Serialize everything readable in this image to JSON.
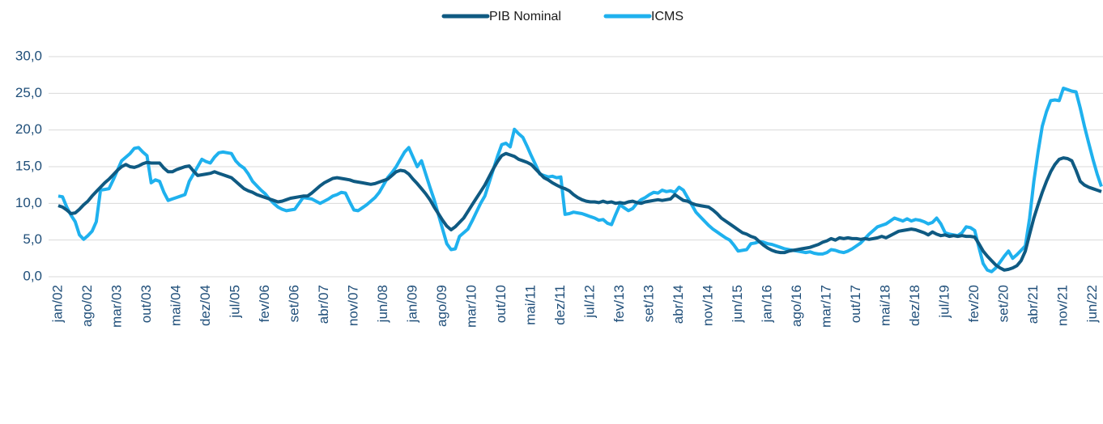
{
  "chart_data": {
    "type": "line",
    "categories": [
      "jan/02",
      null,
      null,
      null,
      null,
      null,
      null,
      "ago/02",
      null,
      null,
      null,
      null,
      null,
      null,
      "mar/03",
      null,
      null,
      null,
      null,
      null,
      null,
      "out/03",
      null,
      null,
      null,
      null,
      null,
      null,
      "mai/04",
      null,
      null,
      null,
      null,
      null,
      null,
      "dez/04",
      null,
      null,
      null,
      null,
      null,
      null,
      "jul/05",
      null,
      null,
      null,
      null,
      null,
      null,
      "fev/06",
      null,
      null,
      null,
      null,
      null,
      null,
      "set/06",
      null,
      null,
      null,
      null,
      null,
      null,
      "abr/07",
      null,
      null,
      null,
      null,
      null,
      null,
      "nov/07",
      null,
      null,
      null,
      null,
      null,
      null,
      "jun/08",
      null,
      null,
      null,
      null,
      null,
      null,
      "jan/09",
      null,
      null,
      null,
      null,
      null,
      null,
      "ago/09",
      null,
      null,
      null,
      null,
      null,
      null,
      "mar/10",
      null,
      null,
      null,
      null,
      null,
      null,
      "out/10",
      null,
      null,
      null,
      null,
      null,
      null,
      "mai/11",
      null,
      null,
      null,
      null,
      null,
      null,
      "dez/11",
      null,
      null,
      null,
      null,
      null,
      null,
      "jul/12",
      null,
      null,
      null,
      null,
      null,
      null,
      "fev/13",
      null,
      null,
      null,
      null,
      null,
      null,
      "set/13",
      null,
      null,
      null,
      null,
      null,
      null,
      "abr/14",
      null,
      null,
      null,
      null,
      null,
      null,
      "nov/14",
      null,
      null,
      null,
      null,
      null,
      null,
      "jun/15",
      null,
      null,
      null,
      null,
      null,
      null,
      "jan/16",
      null,
      null,
      null,
      null,
      null,
      null,
      "ago/16",
      null,
      null,
      null,
      null,
      null,
      null,
      "mar/17",
      null,
      null,
      null,
      null,
      null,
      null,
      "out/17",
      null,
      null,
      null,
      null,
      null,
      null,
      "mai/18",
      null,
      null,
      null,
      null,
      null,
      null,
      "dez/18",
      null,
      null,
      null,
      null,
      null,
      null,
      "jul/19",
      null,
      null,
      null,
      null,
      null,
      null,
      "fev/20",
      null,
      null,
      null,
      null,
      null,
      null,
      "set/20",
      null,
      null,
      null,
      null,
      null,
      null,
      "abr/21",
      null,
      null,
      null,
      null,
      null,
      null,
      "nov/21",
      null,
      null,
      null,
      null,
      null,
      null,
      "jun/22",
      null,
      null
    ],
    "series": [
      {
        "name": "PIB Nominal",
        "color": "#0f5a82",
        "values": [
          9.7,
          9.5,
          9.1,
          8.6,
          8.7,
          9.2,
          9.8,
          10.3,
          11.0,
          11.6,
          12.2,
          12.8,
          13.3,
          13.9,
          14.5,
          15.0,
          15.3,
          15.0,
          14.9,
          15.1,
          15.4,
          15.6,
          15.5,
          15.5,
          15.5,
          14.8,
          14.3,
          14.3,
          14.6,
          14.8,
          15.0,
          15.1,
          14.4,
          13.8,
          13.9,
          14.0,
          14.1,
          14.3,
          14.1,
          13.9,
          13.7,
          13.5,
          13.0,
          12.5,
          12.0,
          11.7,
          11.5,
          11.2,
          11.0,
          10.8,
          10.6,
          10.4,
          10.2,
          10.3,
          10.5,
          10.7,
          10.8,
          10.9,
          11.0,
          11.0,
          11.4,
          11.9,
          12.4,
          12.8,
          13.1,
          13.4,
          13.5,
          13.4,
          13.3,
          13.2,
          13.0,
          12.9,
          12.8,
          12.7,
          12.6,
          12.7,
          12.9,
          13.1,
          13.3,
          13.8,
          14.3,
          14.5,
          14.4,
          14.0,
          13.3,
          12.7,
          12.0,
          11.3,
          10.5,
          9.5,
          8.6,
          7.7,
          6.9,
          6.4,
          6.8,
          7.4,
          8.0,
          8.9,
          9.8,
          10.7,
          11.6,
          12.5,
          13.6,
          14.7,
          15.7,
          16.5,
          16.8,
          16.6,
          16.4,
          16.0,
          15.8,
          15.6,
          15.3,
          14.7,
          14.1,
          13.5,
          13.2,
          12.8,
          12.5,
          12.2,
          12.0,
          11.7,
          11.2,
          10.8,
          10.5,
          10.3,
          10.2,
          10.2,
          10.1,
          10.3,
          10.1,
          10.2,
          10.0,
          10.1,
          10.0,
          10.2,
          10.3,
          10.1,
          10.0,
          10.2,
          10.3,
          10.4,
          10.5,
          10.4,
          10.5,
          10.6,
          11.2,
          10.8,
          10.4,
          10.3,
          10.0,
          9.8,
          9.7,
          9.6,
          9.5,
          9.1,
          8.6,
          8.0,
          7.6,
          7.2,
          6.8,
          6.4,
          6.0,
          5.8,
          5.5,
          5.3,
          4.8,
          4.3,
          3.9,
          3.6,
          3.4,
          3.3,
          3.3,
          3.5,
          3.6,
          3.7,
          3.8,
          3.9,
          4.0,
          4.2,
          4.4,
          4.7,
          4.9,
          5.2,
          5.0,
          5.3,
          5.2,
          5.3,
          5.2,
          5.2,
          5.1,
          5.2,
          5.1,
          5.2,
          5.3,
          5.5,
          5.3,
          5.6,
          5.9,
          6.2,
          6.3,
          6.4,
          6.5,
          6.4,
          6.2,
          6.0,
          5.7,
          6.1,
          5.8,
          5.6,
          5.7,
          5.5,
          5.6,
          5.5,
          5.6,
          5.5,
          5.5,
          5.4,
          4.5,
          3.5,
          2.8,
          2.2,
          1.6,
          1.2,
          0.9,
          1.0,
          1.2,
          1.5,
          2.2,
          3.5,
          5.8,
          8.0,
          9.8,
          11.5,
          13.0,
          14.3,
          15.3,
          16.0,
          16.2,
          16.1,
          15.8,
          14.5,
          13.0,
          12.5,
          12.2,
          12.0,
          11.8,
          11.6
        ]
      },
      {
        "name": "ICMS",
        "color": "#1fb1ee",
        "values": [
          11.0,
          10.9,
          9.5,
          8.4,
          7.5,
          5.7,
          5.1,
          5.6,
          6.2,
          7.5,
          11.8,
          11.9,
          12.0,
          13.2,
          14.5,
          15.8,
          16.3,
          16.8,
          17.5,
          17.6,
          17.0,
          16.5,
          12.8,
          13.2,
          13.0,
          11.5,
          10.4,
          10.6,
          10.8,
          11.0,
          11.2,
          13.0,
          14.0,
          15.0,
          16.0,
          15.7,
          15.5,
          16.3,
          16.9,
          17.0,
          16.9,
          16.8,
          15.8,
          15.2,
          14.8,
          14.0,
          13.0,
          12.4,
          11.8,
          11.3,
          10.6,
          10.0,
          9.5,
          9.2,
          9.0,
          9.1,
          9.2,
          10.0,
          10.8,
          10.7,
          10.6,
          10.3,
          10.0,
          10.3,
          10.6,
          11.0,
          11.2,
          11.5,
          11.4,
          10.2,
          9.1,
          9.0,
          9.4,
          9.8,
          10.3,
          10.8,
          11.5,
          12.5,
          13.5,
          14.2,
          15.0,
          16.0,
          17.0,
          17.6,
          16.3,
          15.0,
          15.8,
          14.0,
          12.2,
          10.5,
          8.5,
          6.5,
          4.5,
          3.7,
          3.8,
          5.5,
          6.0,
          6.5,
          7.6,
          8.8,
          10.0,
          11.0,
          12.8,
          14.6,
          16.4,
          18.0,
          18.2,
          17.7,
          20.1,
          19.5,
          19.0,
          17.8,
          16.5,
          15.3,
          14.0,
          13.8,
          13.6,
          13.7,
          13.5,
          13.6,
          8.5,
          8.6,
          8.8,
          8.7,
          8.6,
          8.4,
          8.2,
          8.0,
          7.7,
          7.8,
          7.3,
          7.1,
          8.5,
          9.8,
          9.4,
          9.0,
          9.3,
          10.0,
          10.5,
          10.8,
          11.2,
          11.5,
          11.4,
          11.8,
          11.6,
          11.7,
          11.5,
          12.2,
          11.8,
          10.8,
          9.8,
          8.8,
          8.2,
          7.6,
          7.0,
          6.5,
          6.1,
          5.7,
          5.3,
          5.0,
          4.3,
          3.5,
          3.6,
          3.7,
          4.5,
          4.6,
          4.8,
          4.7,
          4.5,
          4.4,
          4.2,
          4.0,
          3.8,
          3.7,
          3.6,
          3.5,
          3.4,
          3.3,
          3.4,
          3.2,
          3.1,
          3.1,
          3.3,
          3.7,
          3.6,
          3.4,
          3.3,
          3.5,
          3.8,
          4.2,
          4.6,
          5.2,
          5.8,
          6.3,
          6.8,
          7.0,
          7.2,
          7.6,
          8.0,
          7.8,
          7.6,
          7.9,
          7.6,
          7.8,
          7.7,
          7.5,
          7.2,
          7.4,
          8.0,
          7.2,
          6.0,
          5.8,
          5.7,
          5.6,
          6.0,
          6.8,
          6.7,
          6.3,
          4.0,
          1.8,
          0.9,
          0.7,
          1.2,
          2.0,
          2.8,
          3.5,
          2.5,
          3.0,
          3.6,
          4.2,
          8.0,
          13.0,
          17.0,
          20.5,
          22.5,
          24.0,
          24.1,
          24.0,
          25.7,
          25.5,
          25.3,
          25.2,
          23.0,
          20.5,
          18.2,
          16.0,
          14.0,
          12.3
        ]
      }
    ],
    "ylim": [
      0,
      30
    ],
    "yticks": [
      {
        "value": 0,
        "label": "0,0"
      },
      {
        "value": 5,
        "label": "5,0"
      },
      {
        "value": 10,
        "label": "10,0"
      },
      {
        "value": 15,
        "label": "15,0"
      },
      {
        "value": 20,
        "label": "20,0"
      },
      {
        "value": 25,
        "label": "25,0"
      },
      {
        "value": 30,
        "label": "30,0"
      }
    ],
    "grid": true,
    "legend": "top"
  }
}
